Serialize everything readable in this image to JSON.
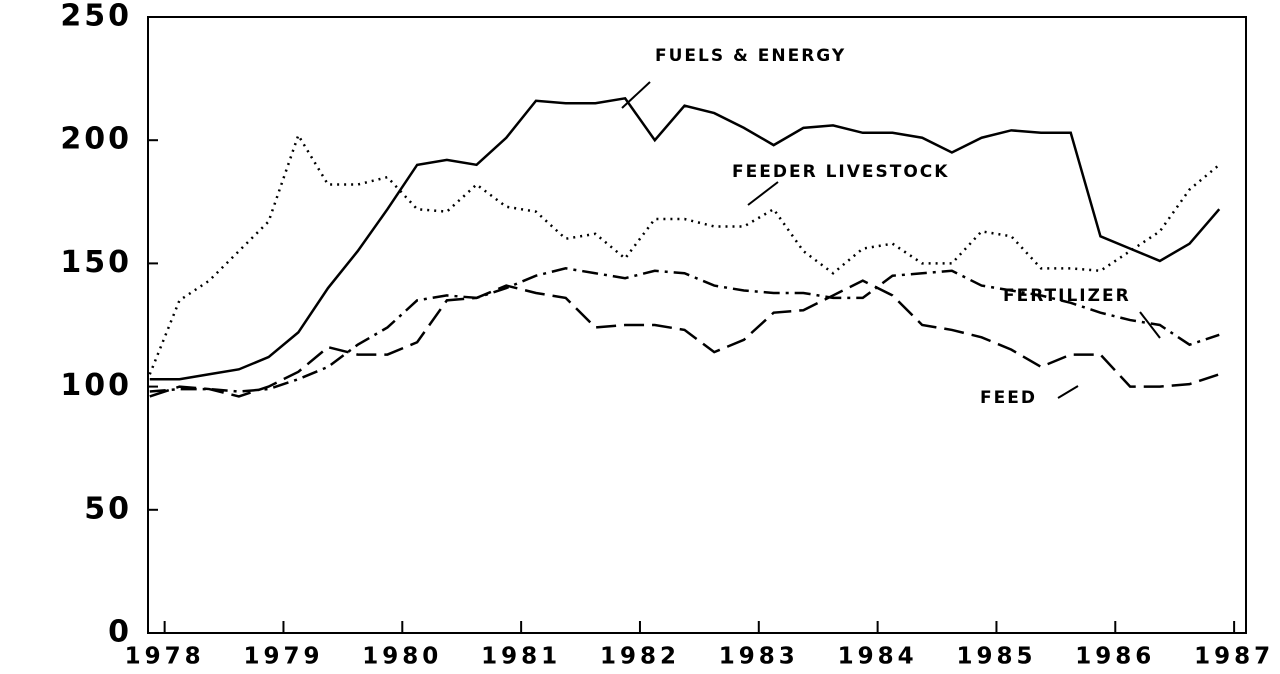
{
  "chart_data": {
    "type": "line",
    "x": [
      1977.875,
      1978.125,
      1978.375,
      1978.625,
      1978.875,
      1979.125,
      1979.375,
      1979.625,
      1979.875,
      1980.125,
      1980.375,
      1980.625,
      1980.875,
      1981.125,
      1981.375,
      1981.625,
      1981.875,
      1982.125,
      1982.375,
      1982.625,
      1982.875,
      1983.125,
      1983.375,
      1983.625,
      1983.875,
      1984.125,
      1984.375,
      1984.625,
      1984.875,
      1985.125,
      1985.375,
      1985.625,
      1985.875,
      1986.125,
      1986.375,
      1986.625,
      1986.875
    ],
    "series": [
      {
        "name": "FUELS & ENERGY",
        "color": "#000000",
        "style": "solid",
        "values": [
          103,
          103,
          105,
          107,
          112,
          122,
          140,
          155,
          172,
          190,
          192,
          190,
          201,
          216,
          215,
          215,
          217,
          200,
          214,
          211,
          205,
          198,
          205,
          206,
          203,
          203,
          201,
          195,
          201,
          204,
          203,
          203,
          161,
          156,
          151,
          158,
          172
        ]
      },
      {
        "name": "FEEDER LIVESTOCK",
        "color": "#000000",
        "style": "dotted",
        "values": [
          105,
          135,
          143,
          155,
          167,
          202,
          182,
          182,
          185,
          172,
          171,
          182,
          173,
          171,
          160,
          162,
          152,
          168,
          168,
          165,
          165,
          172,
          155,
          146,
          156,
          158,
          150,
          150,
          163,
          161,
          148,
          148,
          147,
          155,
          163,
          180,
          190
        ]
      },
      {
        "name": "FERTILIZER",
        "color": "#000000",
        "style": "dashdot",
        "values": [
          98,
          99,
          99,
          98,
          99,
          103,
          108,
          117,
          124,
          135,
          137,
          136,
          140,
          145,
          148,
          146,
          144,
          147,
          146,
          141,
          139,
          138,
          138,
          136,
          136,
          145,
          146,
          147,
          141,
          139,
          137,
          134,
          130,
          127,
          125,
          117,
          121
        ]
      },
      {
        "name": "FEED",
        "color": "#000000",
        "style": "dashed",
        "values": [
          96,
          100,
          99,
          96,
          100,
          106,
          116,
          113,
          113,
          118,
          135,
          136,
          141,
          138,
          136,
          124,
          125,
          125,
          123,
          114,
          119,
          130,
          131,
          137,
          143,
          137,
          125,
          123,
          120,
          115,
          108,
          113,
          113,
          100,
          100,
          101,
          105
        ]
      }
    ],
    "xlim": [
      1977.86,
      1987.1
    ],
    "xticks": [
      1978,
      1979,
      1980,
      1981,
      1982,
      1983,
      1984,
      1985,
      1986,
      1987
    ],
    "ylim": [
      0,
      250
    ],
    "yticks": [
      0,
      50,
      100,
      150,
      200,
      250
    ]
  }
}
